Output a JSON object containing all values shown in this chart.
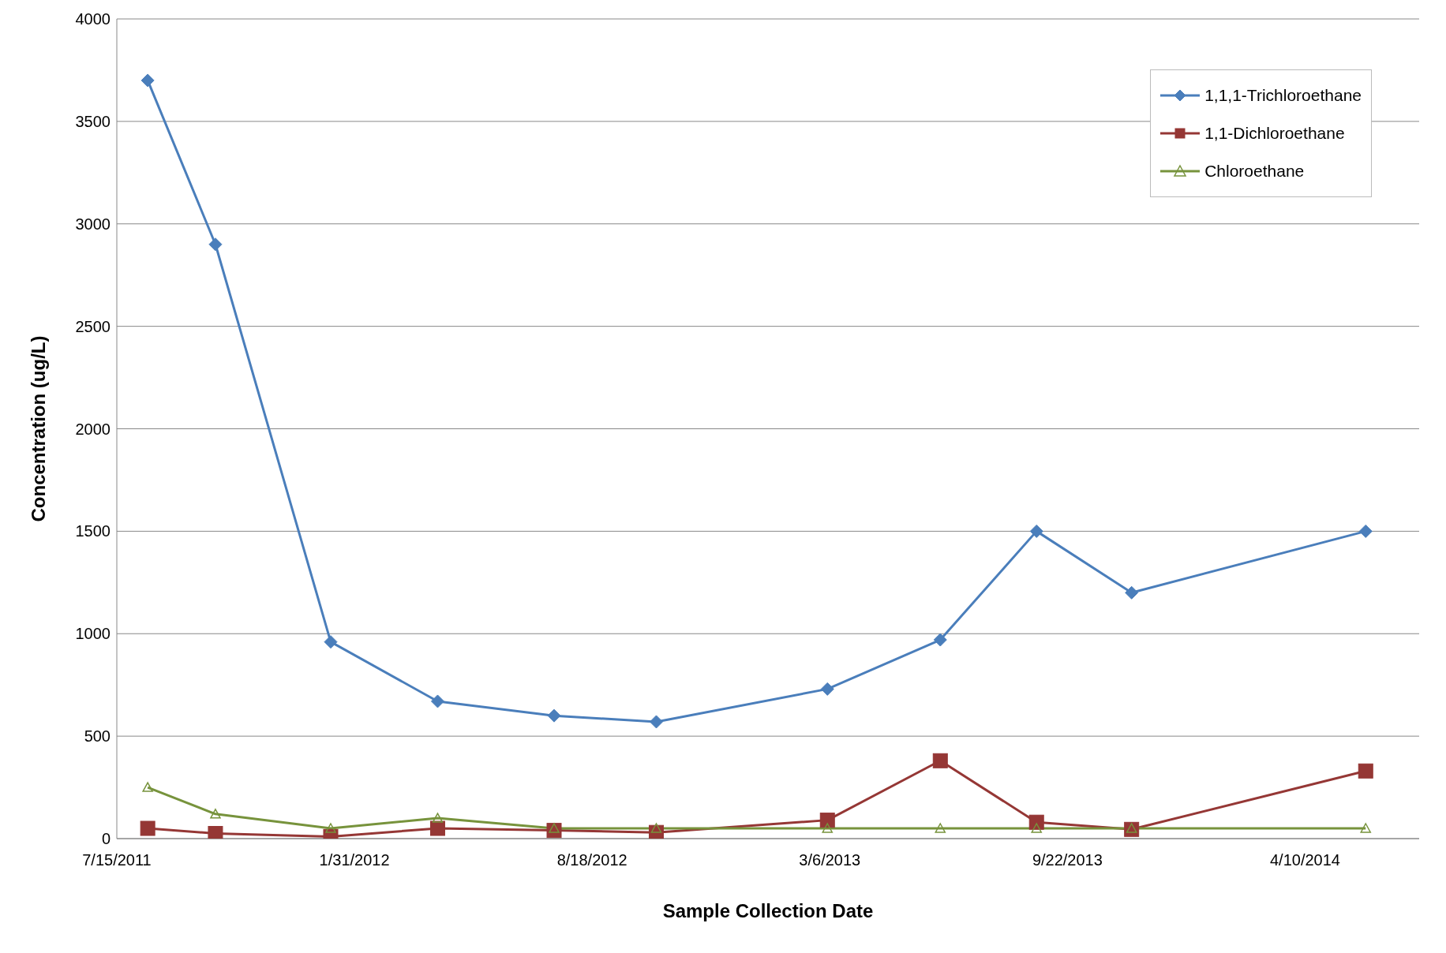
{
  "chart_data": {
    "type": "line",
    "xlabel": "Sample Collection Date",
    "ylabel": "Concentration (ug/L)",
    "x": [
      "2011-08-10",
      "2011-10-06",
      "2012-01-11",
      "2012-04-10",
      "2012-07-17",
      "2012-10-11",
      "2013-03-04",
      "2013-06-07",
      "2013-08-27",
      "2013-11-15",
      "2014-05-31"
    ],
    "series": [
      {
        "name": "1,1,1-Trichloroethane",
        "color": "#4a7ebb",
        "marker": "diamond",
        "values": [
          3700,
          2900,
          960,
          670,
          600,
          570,
          730,
          970,
          1500,
          1200,
          1500
        ]
      },
      {
        "name": "1,1-Dichloroethane",
        "color": "#953735",
        "marker": "square",
        "values": [
          50,
          25,
          10,
          50,
          40,
          30,
          90,
          380,
          80,
          45,
          330
        ]
      },
      {
        "name": "Chloroethane",
        "color": "#77933c",
        "marker": "triangle",
        "values": [
          250,
          120,
          50,
          100,
          50,
          50,
          50,
          50,
          50,
          50,
          50
        ]
      }
    ],
    "xlim": [
      "2011-07-15",
      "2014-07-15"
    ],
    "xticks": [
      {
        "value": "2011-07-15",
        "label": "7/15/2011"
      },
      {
        "value": "2012-01-31",
        "label": "1/31/2012"
      },
      {
        "value": "2012-08-18",
        "label": "8/18/2012"
      },
      {
        "value": "2013-03-06",
        "label": "3/6/2013"
      },
      {
        "value": "2013-09-22",
        "label": "9/22/2013"
      },
      {
        "value": "2014-04-10",
        "label": "4/10/2014"
      }
    ],
    "ylim": [
      0,
      4000
    ],
    "yticks": [
      0,
      500,
      1000,
      1500,
      2000,
      2500,
      3000,
      3500,
      4000
    ],
    "grid": "y",
    "legend": "top right",
    "line_style": "solid"
  }
}
